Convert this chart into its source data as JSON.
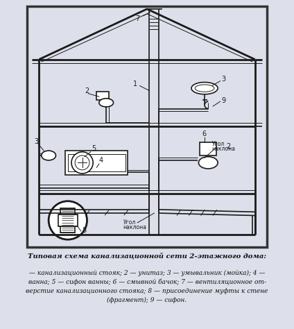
{
  "title": "Типовая схема канализационной сети 2-этажного дома:",
  "caption_lines": [
    "— канализационный стояк; 2 — унитаз; 3 — умывальник (мойка); 4 —",
    "ванна; 5 — сифон ванны; 6 — смывной бачок; 7 — вентиляционное от-",
    "верстие канализационного стояка; 8 — присоединение муфты к стене",
    "(фрагмент); 9 — сифон."
  ],
  "bg_outer": "#dde0ea",
  "bg_diagram": "#ffffff",
  "lc": "#1a1a1a",
  "fig_w": 4.24,
  "fig_h": 4.74,
  "dpi": 100
}
